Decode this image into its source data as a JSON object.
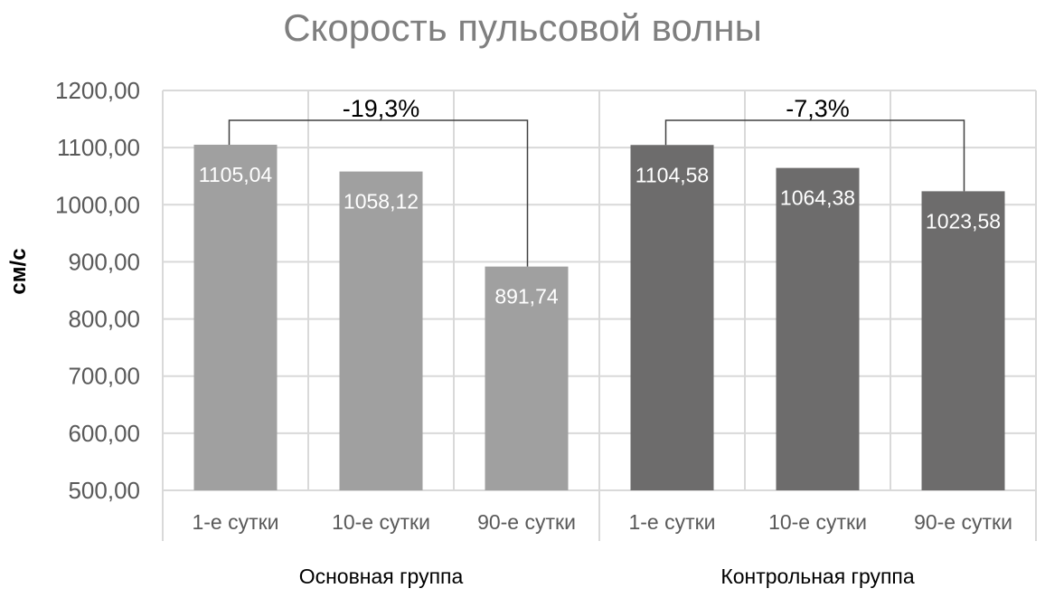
{
  "chart_data": {
    "type": "bar",
    "title": "Скорость пульсовой волны",
    "ylabel": "см/с",
    "xlabel": "",
    "ylim": [
      500,
      1200
    ],
    "yticks": [
      "500,00",
      "600,00",
      "700,00",
      "800,00",
      "900,00",
      "1000,00",
      "1100,00",
      "1200,00"
    ],
    "grid": true,
    "groups": [
      {
        "name": "Основная группа",
        "color": "#a0a0a0",
        "categories": [
          "1-е сутки",
          "10-е сутки",
          "90-е сутки"
        ],
        "values": [
          1105.04,
          1058.12,
          891.74
        ],
        "labels": [
          "1105,04",
          "1058,12",
          "891,74"
        ],
        "annotation": "-19,3%"
      },
      {
        "name": "Контрольная группа",
        "color": "#6d6c6c",
        "categories": [
          "1-е сутки",
          "10-е сутки",
          "90-е сутки"
        ],
        "values": [
          1104.58,
          1064.38,
          1023.58
        ],
        "labels": [
          "1104,58",
          "1064,38",
          "1023,58"
        ],
        "annotation": "-7,3%"
      }
    ]
  }
}
